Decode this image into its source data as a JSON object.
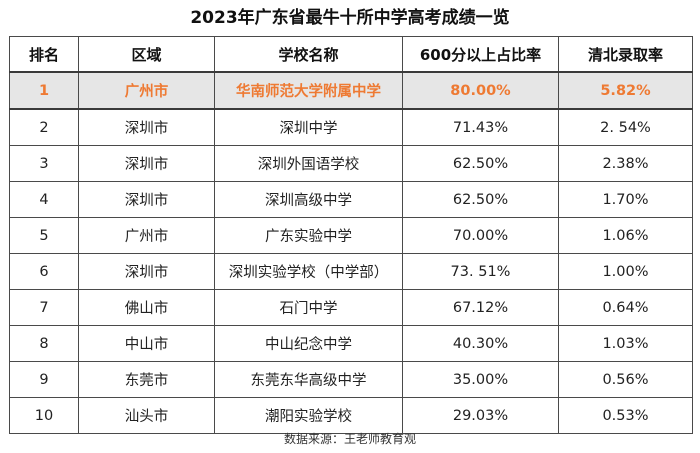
{
  "title": "2023年广东省最牛十所中学高考成绩一览",
  "headers": [
    "排名",
    "区域",
    "学校名称",
    "600分以上占比率",
    "清北录取率"
  ],
  "rows": [
    {
      "rank": "1",
      "region": "广州市",
      "school": "华南师范大学附属中学",
      "ratio600": "80.00%",
      "qingbei": "5.82%",
      "highlight": true
    },
    {
      "rank": "2",
      "region": "深圳市",
      "school": "深圳中学",
      "ratio600": "71.43%",
      "qingbei": "2. 54%"
    },
    {
      "rank": "3",
      "region": "深圳市",
      "school": "深圳外国语学校",
      "ratio600": "62.50%",
      "qingbei": "2.38%"
    },
    {
      "rank": "4",
      "region": "深圳市",
      "school": "深圳高级中学",
      "ratio600": "62.50%",
      "qingbei": "1.70%"
    },
    {
      "rank": "5",
      "region": "广州市",
      "school": "广东实验中学",
      "ratio600": "70.00%",
      "qingbei": "1.06%"
    },
    {
      "rank": "6",
      "region": "深圳市",
      "school": "深圳实验学校（中学部）",
      "ratio600": "73. 51%",
      "qingbei": "1.00%"
    },
    {
      "rank": "7",
      "region": "佛山市",
      "school": "石门中学",
      "ratio600": "67.12%",
      "qingbei": "0.64%"
    },
    {
      "rank": "8",
      "region": "中山市",
      "school": "中山纪念中学",
      "ratio600": "40.30%",
      "qingbei": "1.03%"
    },
    {
      "rank": "9",
      "region": "东莞市",
      "school": "东莞东华高级中学",
      "ratio600": "35.00%",
      "qingbei": "0.56%"
    },
    {
      "rank": "10",
      "region": "汕头市",
      "school": "潮阳实验学校",
      "ratio600": "29.03%",
      "qingbei": "0.53%"
    }
  ],
  "footer": "数据来源：王老师教育观",
  "colors": {
    "highlight_text": "#ee7a33",
    "highlight_bg": "#e6e6e6",
    "border": "#4a4a4a"
  }
}
